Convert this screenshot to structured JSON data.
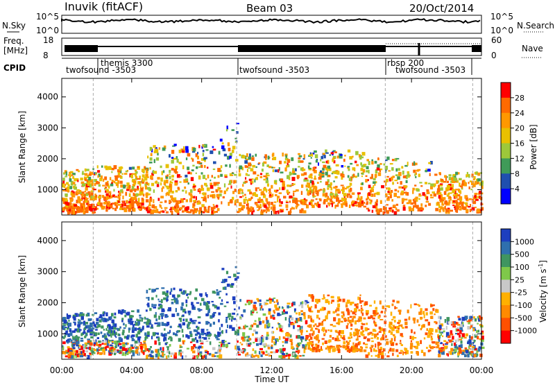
{
  "header": {
    "station": "Inuvik (fitACF)",
    "beam": "Beam 03",
    "date": "20/Oct/2014"
  },
  "left_labels": {
    "nsky": "N.Sky",
    "freq_line1": "Freq.",
    "freq_line2": "[MHz]",
    "cpid": "CPID"
  },
  "right_labels": {
    "nsearch": "N.Search",
    "nave": "Nave"
  },
  "noise_axis": {
    "left_ticks": [
      "10^5",
      "10^0"
    ],
    "right_ticks": [
      "10^5",
      "10^0"
    ]
  },
  "freq_axis": {
    "left_ticks": [
      "18",
      "8"
    ],
    "right_ticks": [
      "60",
      "0"
    ]
  },
  "cpid_segments": [
    {
      "label": "twofsound -3503",
      "start_h": 0.0
    },
    {
      "label": "themis 3300",
      "start_h": 1.8
    },
    {
      "label": "twofsound -3503",
      "start_h": 10.0
    },
    {
      "label": "rbsp 200",
      "start_h": 18.5
    },
    {
      "label": "twofsound -3503",
      "start_h": 19.0
    }
  ],
  "chart_data": [
    {
      "type": "heatmap",
      "name": "power",
      "ylabel": "Slant Range [km]",
      "xlabel": "Time UT",
      "xlim": [
        0,
        24
      ],
      "ylim": [
        180,
        4600
      ],
      "x_ticks": [
        "00:00",
        "04:00",
        "08:00",
        "12:00",
        "16:00",
        "20:00",
        "00:00"
      ],
      "y_ticks": [
        "1000",
        "2000",
        "3000",
        "4000"
      ],
      "colorbar_label": "Power [dB]",
      "colorbar_ticks": [
        "28",
        "24",
        "20",
        "16",
        "12",
        "8",
        "4"
      ],
      "colorbar_colors": [
        "#ff0000",
        "#ff6a00",
        "#ff9800",
        "#e8c000",
        "#9dc83a",
        "#3f9b58",
        "#1f4faf",
        "#0000ff"
      ],
      "mode_change_lines_h": [
        1.8,
        10.0,
        18.5,
        23.5
      ]
    },
    {
      "type": "heatmap",
      "name": "velocity",
      "ylabel": "Slant Range [km]",
      "xlabel": "Time UT",
      "xlim": [
        0,
        24
      ],
      "ylim": [
        180,
        4600
      ],
      "x_ticks": [
        "00:00",
        "04:00",
        "08:00",
        "12:00",
        "16:00",
        "20:00",
        "00:00"
      ],
      "y_ticks": [
        "1000",
        "2000",
        "3000",
        "4000"
      ],
      "colorbar_label": "Velocity [m s",
      "colorbar_label_sup": "-1",
      "colorbar_label_end": "]",
      "colorbar_ticks": [
        "1000",
        "500",
        "100",
        "25",
        "-25",
        "-100",
        "-500",
        "-1000"
      ],
      "colorbar_colors": [
        "#1d3fbf",
        "#2f6fae",
        "#3f9560",
        "#7fc84a",
        "#c8c8c8",
        "#ffb000",
        "#ff8a00",
        "#ff5000",
        "#ff0000"
      ],
      "mode_change_lines_h": [
        1.8,
        10.0,
        18.5,
        23.5
      ]
    }
  ],
  "time_axis_title": "Time UT"
}
